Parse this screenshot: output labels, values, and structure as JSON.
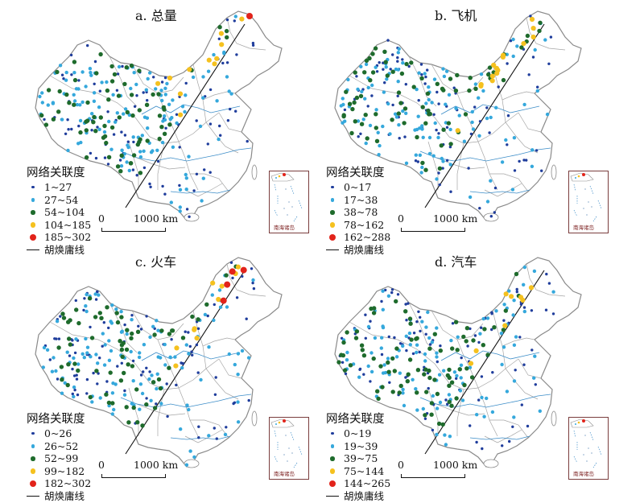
{
  "colors": {
    "level1": "#1f3d9c",
    "level2": "#35a8dc",
    "level3": "#1e6b2c",
    "level4": "#f5c11e",
    "level5": "#e2231a",
    "boundary": "#8a8a8a",
    "river": "#3c8dc8",
    "hu_line": "#111111",
    "inset_border": "#7a3d3d"
  },
  "legend_title": "网络关联度",
  "hu_line_label": "胡焕庸线",
  "scale": {
    "zero": "0",
    "length": "1000 km"
  },
  "inset_caption": "南海诸岛",
  "panels": [
    {
      "title": "a. 总量",
      "classes": [
        "1~27",
        "27~54",
        "54~104",
        "104~185",
        "185~302"
      ]
    },
    {
      "title": "b. 飞机",
      "classes": [
        "0~17",
        "17~38",
        "38~78",
        "78~162",
        "162~288"
      ]
    },
    {
      "title": "c. 火车",
      "classes": [
        "0~26",
        "26~52",
        "52~99",
        "99~182",
        "182~302"
      ]
    },
    {
      "title": "d. 汽车",
      "classes": [
        "0~19",
        "19~39",
        "39~75",
        "75~144",
        "144~265"
      ]
    }
  ]
}
